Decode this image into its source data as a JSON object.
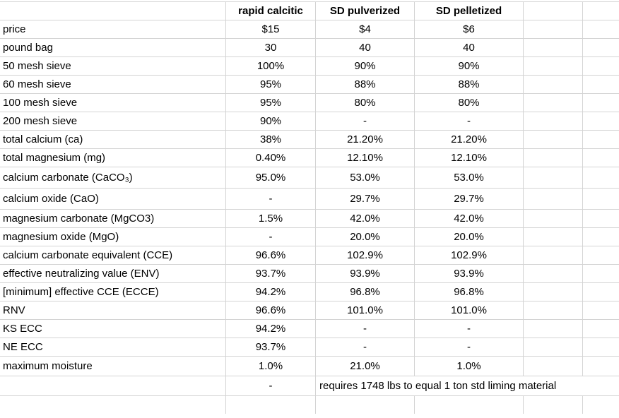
{
  "table": {
    "grid_color": "#d4d4d4",
    "text_color": "#000000",
    "columns": [
      "rapid calcitic",
      "SD pulverized",
      "SD pelletized"
    ],
    "rows": [
      {
        "label": "price",
        "v1": "$15",
        "v2": "$4",
        "v3": "$6"
      },
      {
        "label": "pound bag",
        "v1": "30",
        "v2": "40",
        "v3": "40"
      },
      {
        "label": "50 mesh sieve",
        "v1": "100%",
        "v2": "90%",
        "v3": "90%"
      },
      {
        "label": "60 mesh sieve",
        "v1": "95%",
        "v2": "88%",
        "v3": "88%"
      },
      {
        "label": "100 mesh sieve",
        "v1": "95%",
        "v2": "80%",
        "v3": "80%"
      },
      {
        "label": "200 mesh sieve",
        "v1": "90%",
        "v2": "-",
        "v3": "-"
      },
      {
        "label": "total calcium (ca)",
        "v1": "38%",
        "v2": "21.20%",
        "v3": "21.20%"
      },
      {
        "label": "total magnesium (mg)",
        "v1": "0.40%",
        "v2": "12.10%",
        "v3": "12.10%"
      },
      {
        "label": "calcium carbonate (CaCO₃)",
        "v1": "95.0%",
        "v2": "53.0%",
        "v3": "53.0%"
      },
      {
        "label": "calcium oxide (CaO)",
        "v1": "-",
        "v2": "29.7%",
        "v3": "29.7%"
      },
      {
        "label": "magnesium carbonate (MgCO3)",
        "v1": "1.5%",
        "v2": "42.0%",
        "v3": "42.0%"
      },
      {
        "label": "magnesium oxide (MgO)",
        "v1": "-",
        "v2": "20.0%",
        "v3": "20.0%"
      },
      {
        "label": "calcium carbonate equivalent (CCE)",
        "v1": "96.6%",
        "v2": "102.9%",
        "v3": "102.9%"
      },
      {
        "label": "effective neutralizing value (ENV)",
        "v1": "93.7%",
        "v2": "93.9%",
        "v3": "93.9%"
      },
      {
        "label": "[minimum] effective CCE (ECCE)",
        "v1": "94.2%",
        "v2": "96.8%",
        "v3": "96.8%"
      },
      {
        "label": "RNV",
        "v1": "96.6%",
        "v2": "101.0%",
        "v3": "101.0%"
      },
      {
        "label": "KS ECC",
        "v1": "94.2%",
        "v2": "-",
        "v3": "-"
      },
      {
        "label": "NE ECC",
        "v1": "93.7%",
        "v2": "-",
        "v3": "-"
      },
      {
        "label": "maximum moisture",
        "v1": "1.0%",
        "v2": "21.0%",
        "v3": "1.0%"
      }
    ],
    "footer_row": {
      "v1": "-",
      "note": "requires 1748 lbs to equal 1 ton std liming material"
    }
  }
}
